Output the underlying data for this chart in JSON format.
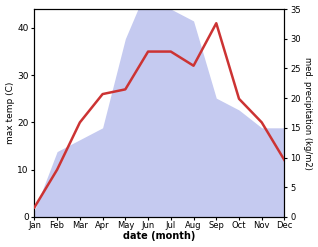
{
  "months": [
    "Jan",
    "Feb",
    "Mar",
    "Apr",
    "May",
    "Jun",
    "Jul",
    "Aug",
    "Sep",
    "Oct",
    "Nov",
    "Dec"
  ],
  "temperature": [
    2,
    10,
    20,
    26,
    27,
    35,
    35,
    32,
    41,
    25,
    20,
    12
  ],
  "precipitation": [
    1,
    11,
    13,
    15,
    30,
    39,
    35,
    33,
    20,
    18,
    15,
    15
  ],
  "temp_color": "#cc3333",
  "precip_fill_color": "#c5caf0",
  "xlabel": "date (month)",
  "ylabel_left": "max temp (C)",
  "ylabel_right": "med. precipitation (kg/m2)",
  "ylim_left": [
    0,
    44
  ],
  "ylim_right": [
    0,
    35
  ],
  "yticks_left": [
    0,
    10,
    20,
    30,
    40
  ],
  "yticks_right": [
    0,
    5,
    10,
    15,
    20,
    25,
    30,
    35
  ],
  "temp_linewidth": 1.8,
  "bg_color": "#ffffff",
  "figsize": [
    3.18,
    2.47
  ],
  "dpi": 100
}
